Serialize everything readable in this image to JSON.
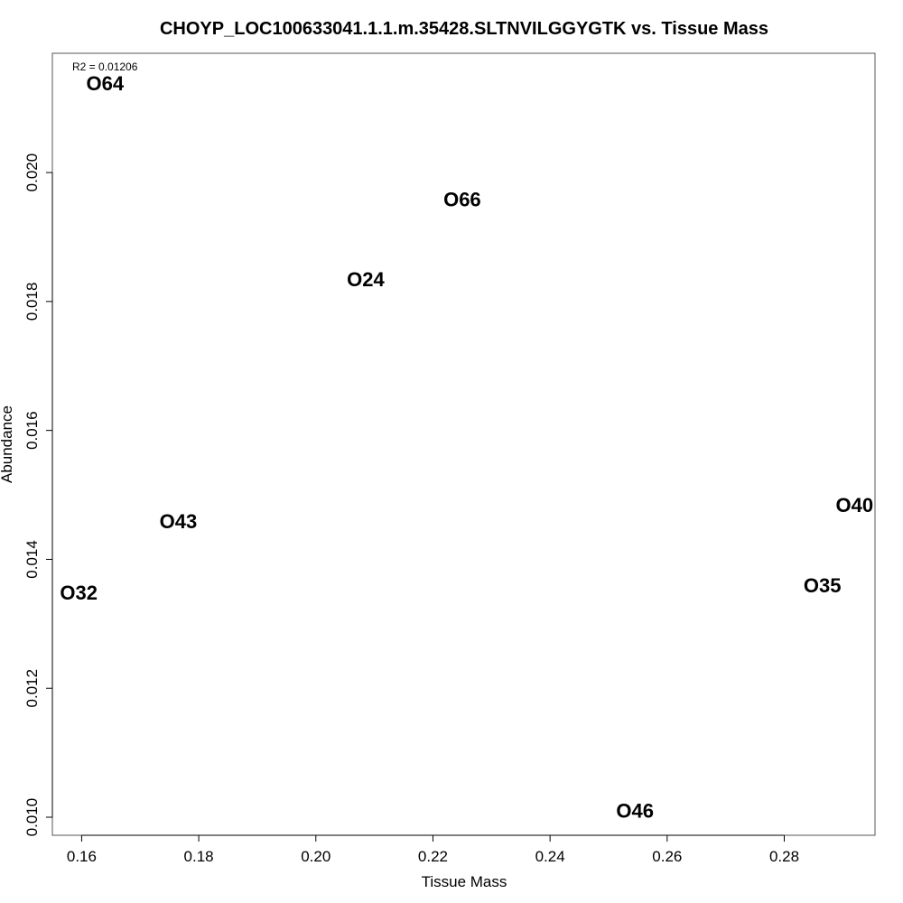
{
  "chart_data": {
    "type": "scatter",
    "title": "CHOYP_LOC100633041.1.1.m.35428.SLTNVILGGYGTK vs. Tissue Mass",
    "xlabel": "Tissue Mass",
    "ylabel": "Abundance",
    "xlim": [
      0.155,
      0.2955
    ],
    "ylim": [
      0.00972,
      0.02185
    ],
    "x_ticks": [
      0.16,
      0.18,
      0.2,
      0.22,
      0.24,
      0.26,
      0.28
    ],
    "x_tick_labels": [
      "0.16",
      "0.18",
      "0.20",
      "0.22",
      "0.24",
      "0.26",
      "0.28"
    ],
    "y_ticks": [
      0.01,
      0.012,
      0.014,
      0.016,
      0.018,
      0.02
    ],
    "y_tick_labels": [
      "0.010",
      "0.012",
      "0.014",
      "0.016",
      "0.018",
      "0.020"
    ],
    "annotation": "R2 = 0.01206",
    "grid": false,
    "points": [
      {
        "label": "O64",
        "x": 0.164,
        "y": 0.02138
      },
      {
        "label": "O66",
        "x": 0.225,
        "y": 0.01958
      },
      {
        "label": "O24",
        "x": 0.2085,
        "y": 0.01834
      },
      {
        "label": "O43",
        "x": 0.1765,
        "y": 0.01459
      },
      {
        "label": "O32",
        "x": 0.1595,
        "y": 0.01348
      },
      {
        "label": "O40",
        "x": 0.292,
        "y": 0.01484
      },
      {
        "label": "O35",
        "x": 0.2865,
        "y": 0.01359
      },
      {
        "label": "O46",
        "x": 0.2545,
        "y": 0.0101
      }
    ]
  }
}
